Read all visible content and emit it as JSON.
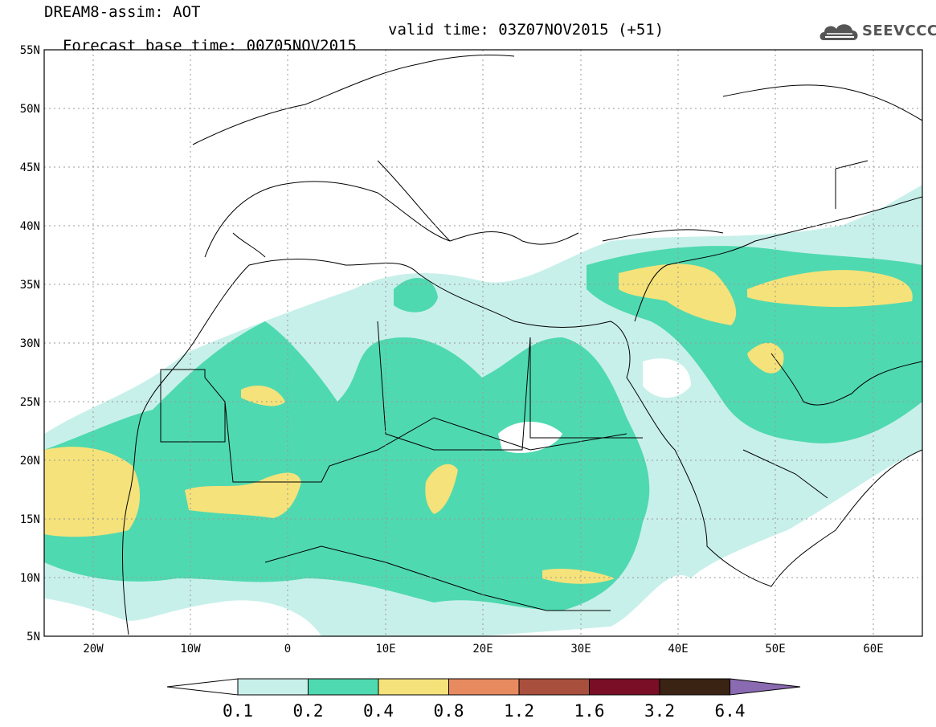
{
  "header": {
    "line1": "DREAM8-assim: AOT",
    "line2_base": "Forecast base time: 00Z05NOV2015",
    "line2_valid": "valid time: 03Z07NOV2015 (+51)"
  },
  "logo": {
    "text": "SEEVCCC",
    "icon": "cloud-logo-icon"
  },
  "map": {
    "lon_range": [
      -25,
      65
    ],
    "lat_range": [
      5,
      55
    ],
    "lat_labels": [
      "55N",
      "50N",
      "45N",
      "40N",
      "35N",
      "30N",
      "25N",
      "20N",
      "15N",
      "10N",
      "5N"
    ],
    "lon_labels": [
      "20W",
      "10W",
      "0",
      "10E",
      "20E",
      "30E",
      "40E",
      "50E",
      "60E"
    ]
  },
  "colorbar": {
    "labels": [
      "0.1",
      "0.2",
      "0.4",
      "0.8",
      "1.2",
      "1.6",
      "3.2",
      "6.4"
    ],
    "colors": [
      "#ffffff",
      "#c8f0ea",
      "#4fd9b0",
      "#f5e27a",
      "#e88a60",
      "#a94f3d",
      "#7a0e27",
      "#3b2314",
      "#8a6ab0"
    ]
  },
  "colors": {
    "land_outline": "#000000",
    "grid": "#999999"
  }
}
